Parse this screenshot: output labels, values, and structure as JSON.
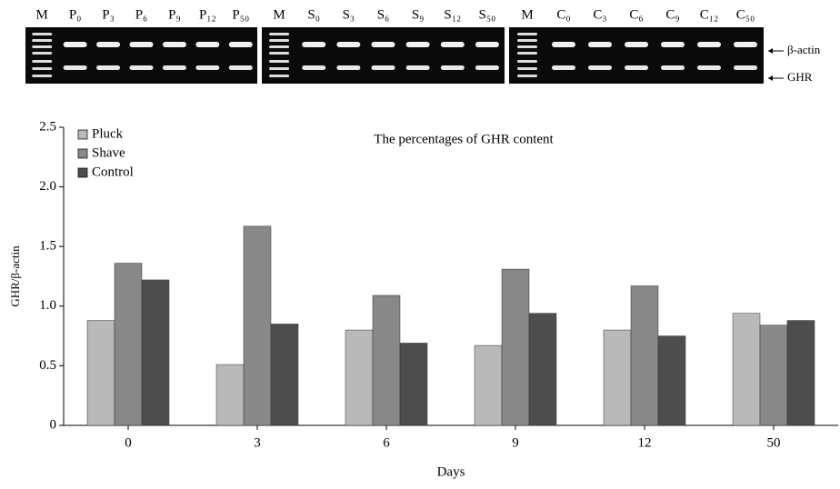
{
  "gel": {
    "panels": [
      {
        "lanes": [
          "M",
          "P₀",
          "P₃",
          "P₆",
          "P₉",
          "P₁₂",
          "P₅₀"
        ]
      },
      {
        "lanes": [
          "M",
          "S₀",
          "S₃",
          "S₆",
          "S₉",
          "S₁₂",
          "S₅₀"
        ]
      },
      {
        "lanes": [
          "M",
          "C₀",
          "C₃",
          "C₆",
          "C₉",
          "C₁₂",
          "C₅₀"
        ]
      }
    ],
    "band_labels": [
      "β-actin",
      "GHR"
    ]
  },
  "chart_data": {
    "type": "bar",
    "title": "The percentages of GHR content",
    "x_label": "Days",
    "y_label": "GHR/β-actin",
    "categories": [
      "0",
      "3",
      "6",
      "9",
      "12",
      "50"
    ],
    "series": [
      {
        "name": "Pluck",
        "color": "#b9b9b9",
        "values": [
          0.88,
          0.51,
          0.8,
          0.67,
          0.8,
          0.94
        ]
      },
      {
        "name": "Shave",
        "color": "#888888",
        "values": [
          1.36,
          1.67,
          1.09,
          1.31,
          1.17,
          0.84
        ]
      },
      {
        "name": "Control",
        "color": "#4d4d4d",
        "values": [
          1.22,
          0.85,
          0.69,
          0.94,
          0.75,
          0.88
        ]
      }
    ],
    "ylim": [
      0,
      2.5
    ],
    "yticks": [
      0,
      0.5,
      {
        "value": 1,
        "label": "1.0"
      },
      1.5,
      {
        "value": 2,
        "label": "2.0"
      },
      2.5
    ],
    "legend": "top-left"
  }
}
